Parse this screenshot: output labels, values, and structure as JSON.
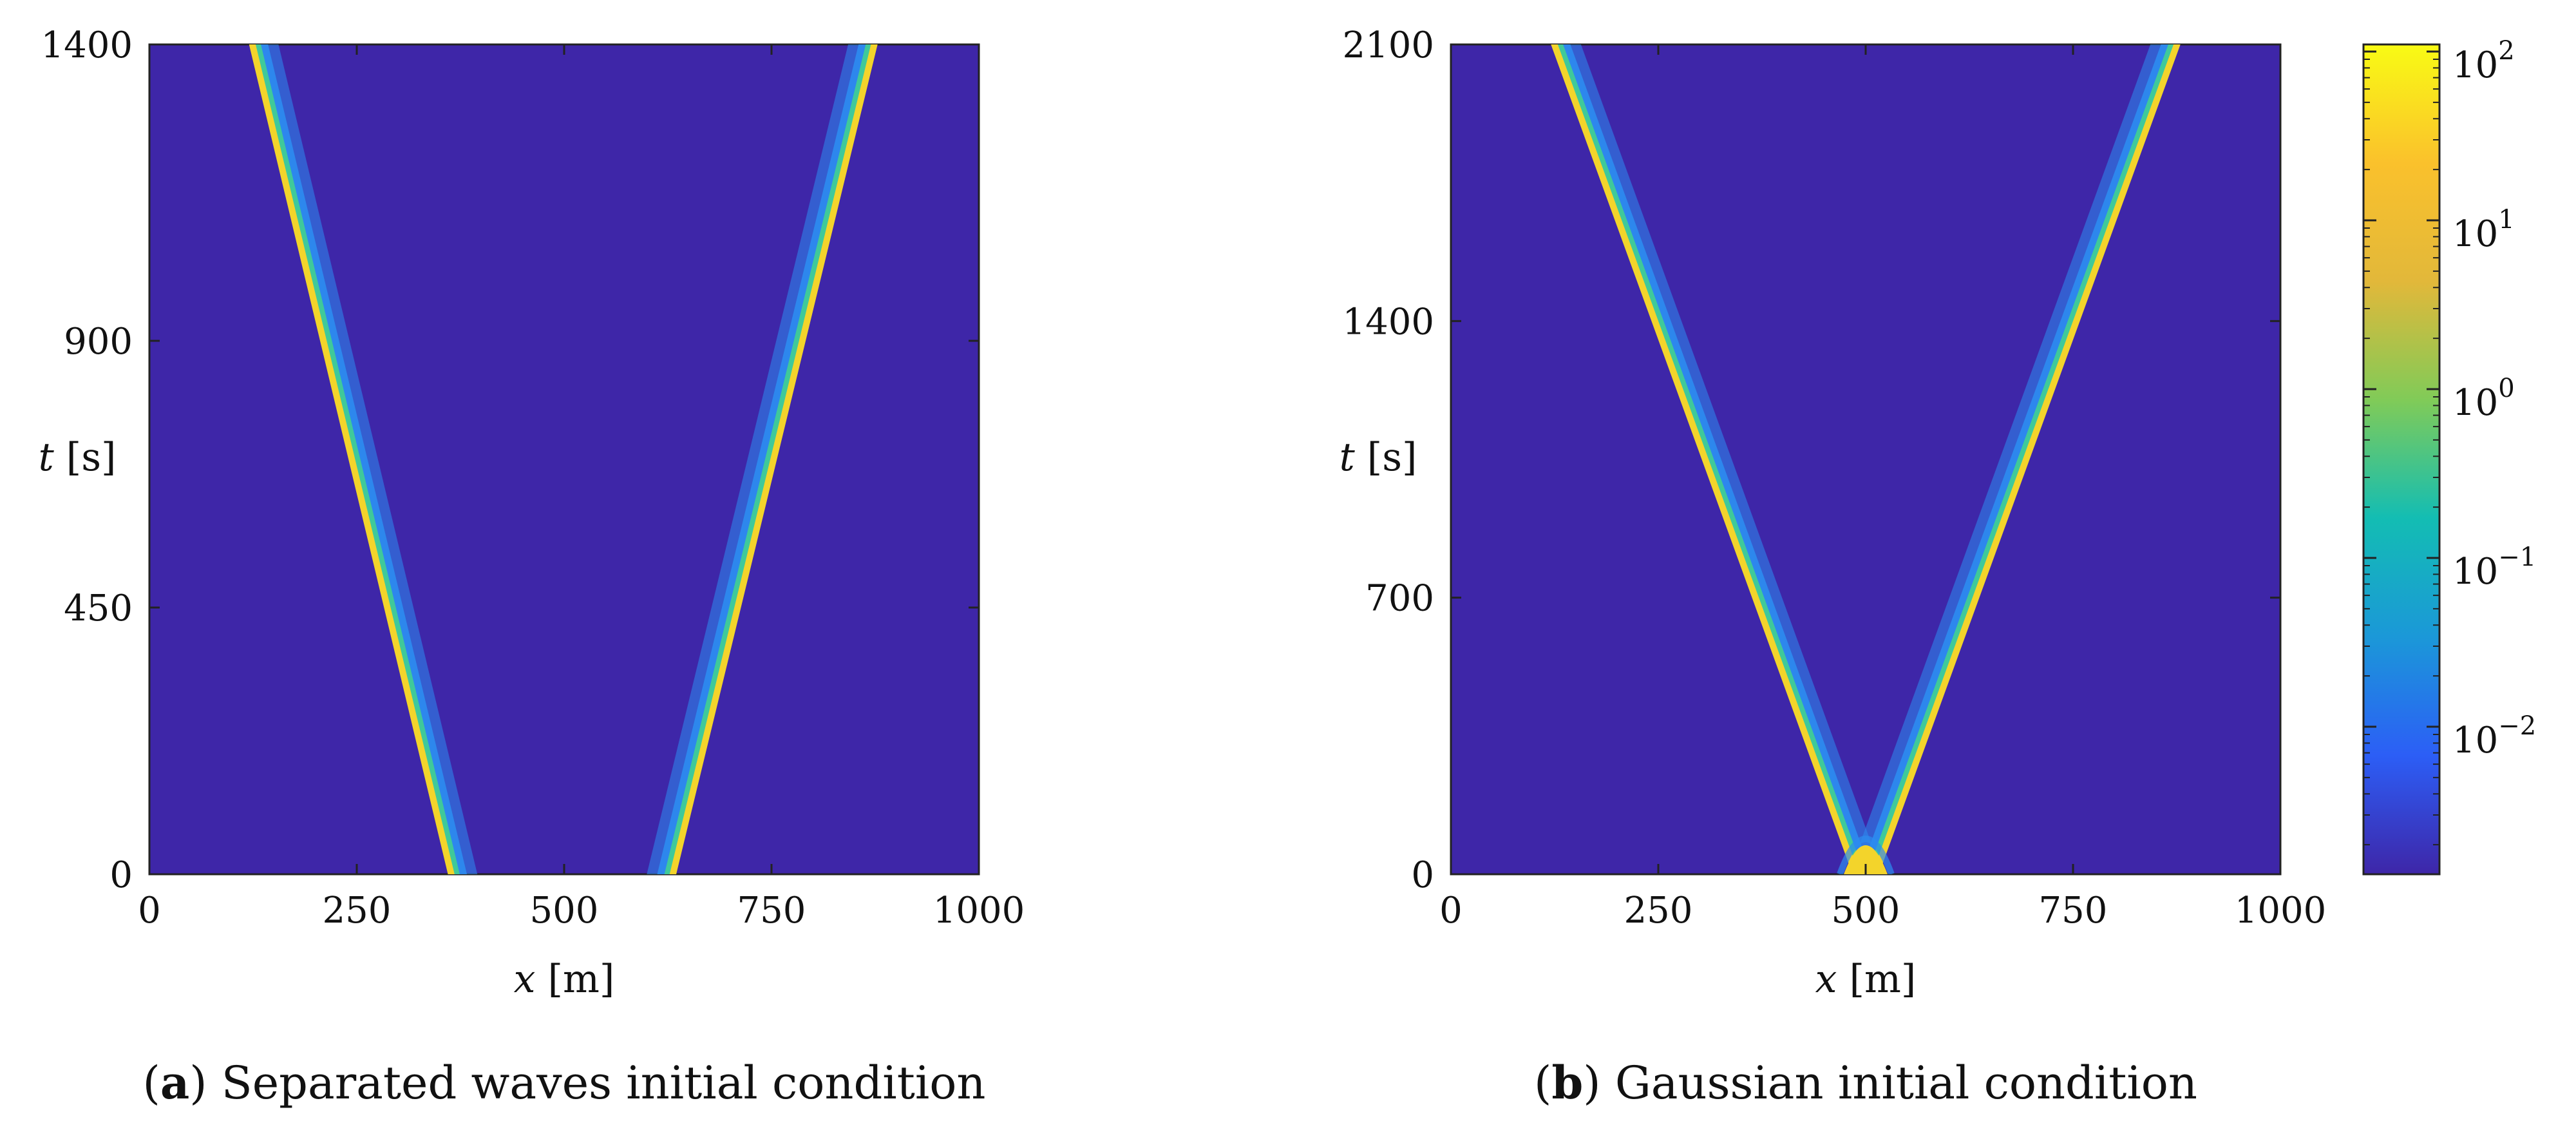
{
  "chart_data": [
    {
      "id": "a",
      "type": "heatmap",
      "panel_label": "a",
      "caption": "Separated waves initial condition",
      "xlabel_var": "x",
      "xlabel_unit": " [m]",
      "ylabel_var": "t",
      "ylabel_unit": " [s]",
      "xlim": [
        0,
        1000
      ],
      "ylim": [
        0,
        1400
      ],
      "xticks": [
        0,
        250,
        500,
        750,
        1000
      ],
      "yticks": [
        0,
        450,
        900,
        1400
      ],
      "waves": [
        {
          "x_at_t0": 365,
          "x_at_tmax": 123,
          "direction": "left"
        },
        {
          "x_at_t0": 630,
          "x_at_tmax": 875,
          "direction": "right"
        }
      ]
    },
    {
      "id": "b",
      "type": "heatmap",
      "panel_label": "b",
      "caption": "Gaussian initial condition",
      "xlabel_var": "x",
      "xlabel_unit": " [m]",
      "ylabel_var": "t",
      "ylabel_unit": " [s]",
      "xlim": [
        0,
        1000
      ],
      "ylim": [
        0,
        2100
      ],
      "xticks": [
        0,
        250,
        500,
        750,
        1000
      ],
      "yticks": [
        0,
        700,
        1400,
        2100
      ],
      "waves": [
        {
          "x_at_t0": 490,
          "x_at_tmax": 123,
          "direction": "left"
        },
        {
          "x_at_t0": 510,
          "x_at_tmax": 877,
          "direction": "right"
        }
      ],
      "source": {
        "x": 500,
        "t": 0
      }
    }
  ],
  "colorbar": {
    "scale": "log",
    "ticks": [
      {
        "base": "10",
        "exp": "2"
      },
      {
        "base": "10",
        "exp": "1"
      },
      {
        "base": "10",
        "exp": "0"
      },
      {
        "base": "10",
        "exp": "−1"
      },
      {
        "base": "10",
        "exp": "−2"
      }
    ],
    "colors": [
      "#3e26a8",
      "#2c5ef6",
      "#1b98d8",
      "#13bdb3",
      "#80cb58",
      "#e2b83a",
      "#fac12c",
      "#f9fb14"
    ]
  },
  "colors": {
    "background": "#3e26a8",
    "wave_core": "#f3d42b",
    "wave_mid": "#3fc99a",
    "wave_outer": "#2c8cf0"
  }
}
